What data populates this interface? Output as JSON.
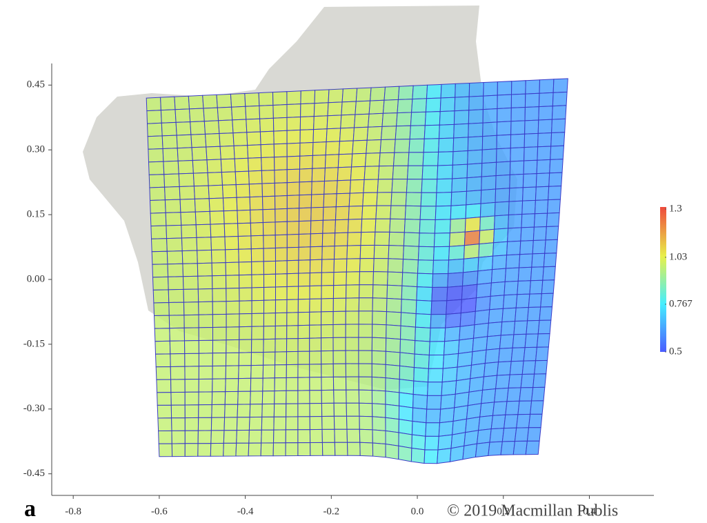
{
  "chart_data": {
    "type": "deformation-grid",
    "xlim": [
      -0.85,
      0.55
    ],
    "ylim": [
      -0.5,
      0.5
    ],
    "xticks": [
      -0.8,
      -0.6,
      -0.4,
      -0.2,
      {
        "value": 0,
        "label": "0.0"
      },
      0.2,
      0.4
    ],
    "yticks": [
      0.45,
      {
        "value": 0.3,
        "label": "0.30"
      },
      0.15,
      {
        "value": 0,
        "label": "0.00"
      },
      -0.15,
      {
        "value": -0.3,
        "label": "-0.30"
      },
      -0.45
    ],
    "colorbar": {
      "lim": [
        0.5,
        1.3
      ],
      "ticks": [
        1.3,
        1.03,
        0.767,
        0.5
      ]
    },
    "panel_label": "a",
    "copyright": "© 2019 Macmillan Publis"
  }
}
